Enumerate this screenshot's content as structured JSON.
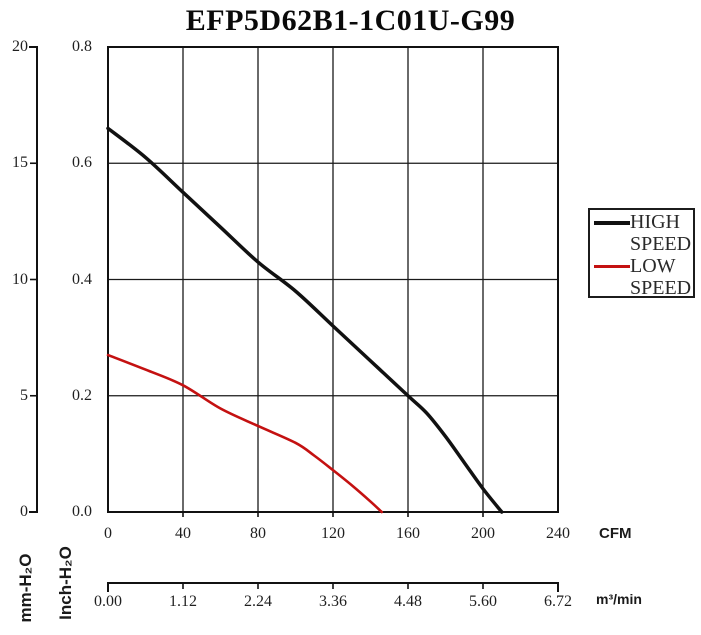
{
  "title": "EFP5D62B1-1C01U-G99",
  "legend": {
    "items": [
      {
        "label": "HIGH SPEED",
        "color": "#111111",
        "thickness": 4
      },
      {
        "label": "LOW SPEED",
        "color": "#c41111",
        "thickness": 3
      }
    ]
  },
  "axes": {
    "mm": {
      "title": "mm-H₂O",
      "ticks": [
        "0",
        "5",
        "10",
        "15",
        "20"
      ],
      "range": [
        0,
        20
      ]
    },
    "inch": {
      "title": "Inch-H₂O",
      "ticks": [
        "0.0",
        "0.2",
        "0.4",
        "0.6",
        "0.8"
      ],
      "range": [
        0,
        0.8
      ]
    },
    "cfm": {
      "title": "CFM",
      "ticks": [
        "0",
        "40",
        "80",
        "120",
        "160",
        "200",
        "240"
      ],
      "range": [
        0,
        240
      ]
    },
    "m3min": {
      "title": "m³/min",
      "ticks": [
        "0.00",
        "1.12",
        "2.24",
        "3.36",
        "4.48",
        "5.60",
        "6.72"
      ],
      "range": [
        0,
        6.72
      ]
    }
  },
  "chart_data": {
    "type": "line",
    "title": "EFP5D62B1-1C01U-G99",
    "xlabel": "CFM",
    "xlabel_secondary": "m³/min",
    "ylabel": "Inch-H₂O",
    "ylabel_secondary": "mm-H₂O",
    "xlim": [
      0,
      240
    ],
    "ylim": [
      0,
      0.8
    ],
    "grid": true,
    "grid_step_x": 40,
    "grid_step_y": 0.2,
    "legend_position": "right",
    "series": [
      {
        "name": "HIGH SPEED",
        "color": "#111111",
        "width": 3.5,
        "x_cfm": [
          0,
          20,
          40,
          60,
          80,
          100,
          120,
          140,
          160,
          170,
          180,
          190,
          200,
          210
        ],
        "y_inch": [
          0.66,
          0.61,
          0.55,
          0.49,
          0.43,
          0.38,
          0.32,
          0.26,
          0.2,
          0.17,
          0.13,
          0.085,
          0.04,
          0.0
        ]
      },
      {
        "name": "LOW SPEED",
        "color": "#c41111",
        "width": 2.6,
        "x_cfm": [
          0,
          20,
          40,
          60,
          80,
          100,
          110,
          120,
          130,
          140,
          146
        ],
        "y_inch": [
          0.27,
          0.245,
          0.218,
          0.178,
          0.148,
          0.119,
          0.097,
          0.072,
          0.046,
          0.018,
          0.0
        ]
      }
    ]
  },
  "colors": {
    "background": "#ffffff",
    "grid": "#1a1a1a",
    "border": "#111111",
    "high_speed": "#111111",
    "low_speed": "#c41111"
  }
}
